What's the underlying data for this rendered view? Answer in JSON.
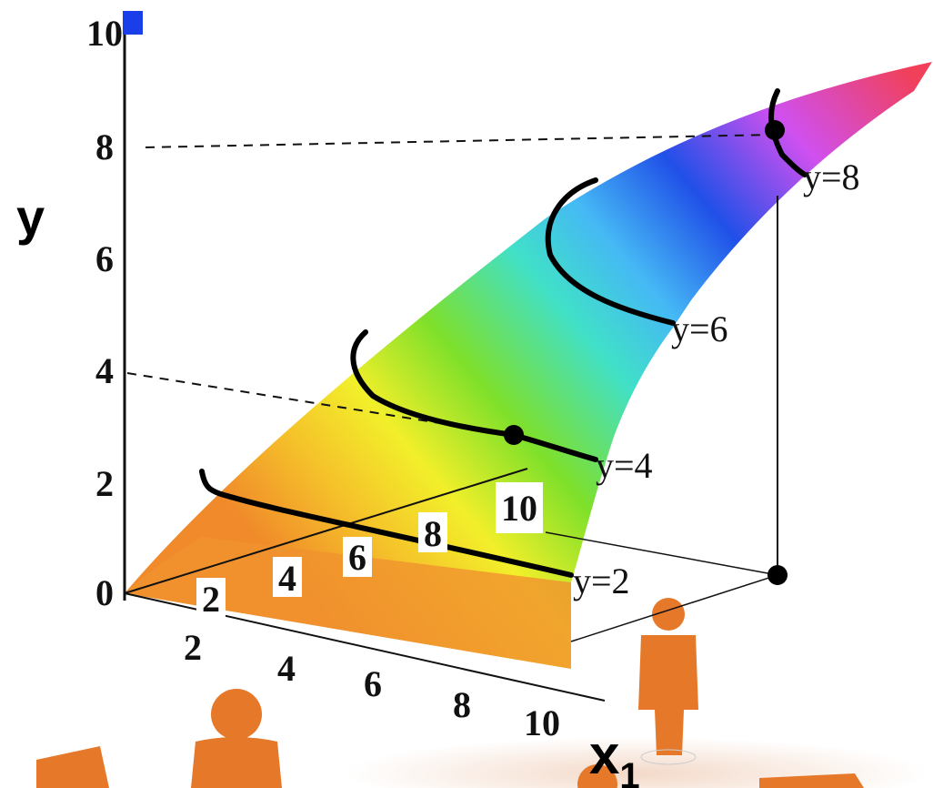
{
  "axes": {
    "y": {
      "label": "y",
      "ticks": [
        0,
        2,
        4,
        6,
        8,
        10
      ]
    },
    "x1": {
      "label": "x",
      "subscript": "1",
      "ticks": [
        2,
        4,
        6,
        8,
        10
      ]
    },
    "x2": {
      "ticks": [
        2,
        4,
        6,
        8,
        10
      ]
    }
  },
  "contours": [
    {
      "label": "y=2"
    },
    {
      "label": "y=4"
    },
    {
      "label": "y=6"
    },
    {
      "label": "y=8"
    }
  ]
}
